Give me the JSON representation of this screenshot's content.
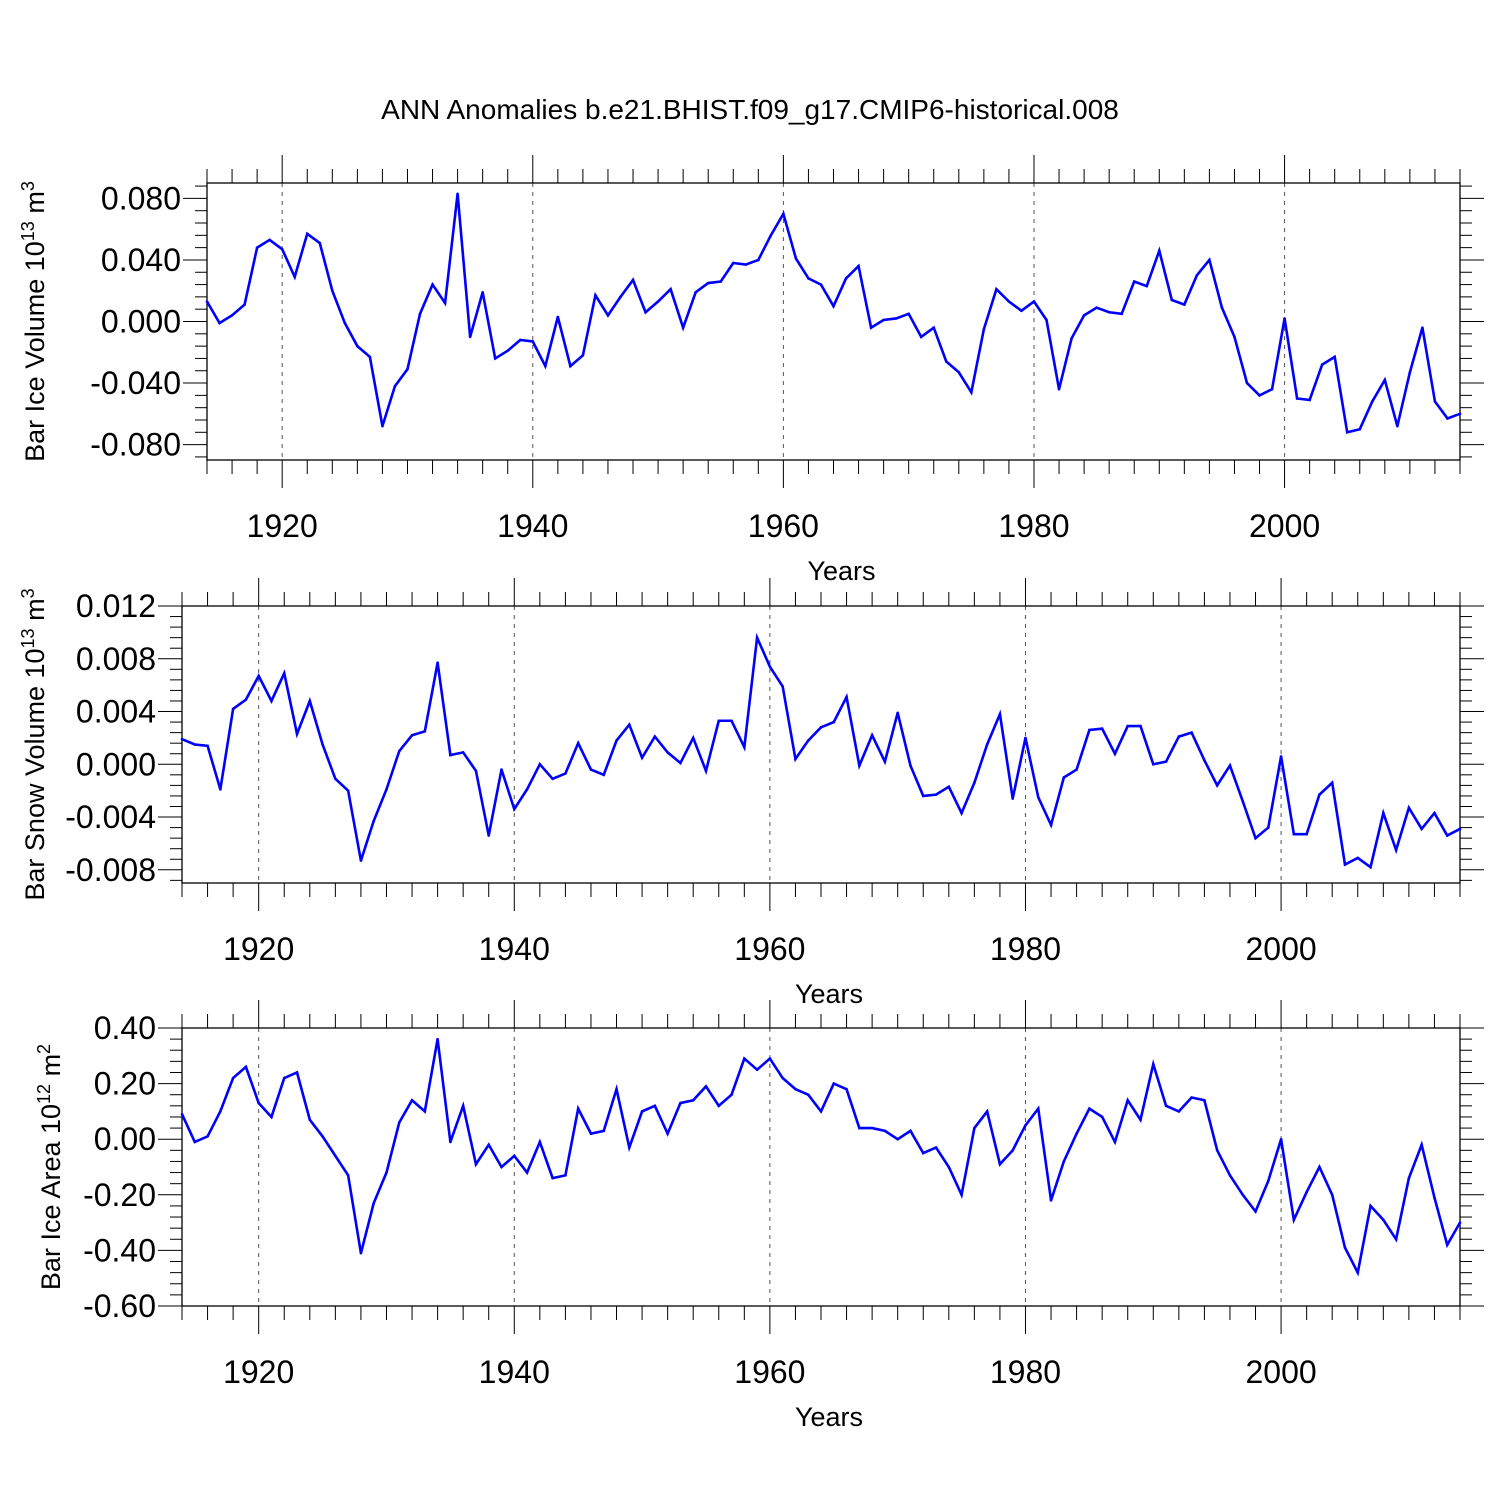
{
  "title": "ANN Anomalies b.e21.BHIST.f09_g17.CMIP6-historical.008",
  "colors": {
    "series": "#0000ff",
    "axis": "#000000",
    "grid": "#555555"
  },
  "chart_data": [
    {
      "type": "line",
      "ylabel": {
        "main": "Bar Ice Volume 10",
        "sup": "13",
        "unit": " m",
        "unit_sup": "3"
      },
      "xlabel": "Years",
      "xlim": [
        1914,
        2014
      ],
      "ylim": [
        -0.09,
        0.09
      ],
      "yticks": [
        0.08,
        0.04,
        0.0,
        -0.04,
        -0.08
      ],
      "ytick_labels": [
        "0.080",
        "0.040",
        "0.000",
        "-0.040",
        "-0.080"
      ],
      "xticks": [
        1920,
        1940,
        1960,
        1980,
        2000
      ],
      "xtick_labels": [
        "1920",
        "1940",
        "1960",
        "1980",
        "2000"
      ],
      "series": [
        {
          "name": "Bar Ice Volume",
          "x_start": 1914,
          "values": [
            0.013,
            -0.001,
            0.004,
            0.011,
            0.048,
            0.053,
            0.047,
            0.029,
            0.057,
            0.051,
            0.02,
            -0.001,
            -0.016,
            -0.023,
            -0.068,
            -0.042,
            -0.031,
            0.005,
            0.024,
            0.012,
            0.083,
            -0.01,
            0.019,
            -0.024,
            -0.019,
            -0.012,
            -0.013,
            -0.029,
            0.003,
            -0.029,
            -0.022,
            0.017,
            0.004,
            0.016,
            0.027,
            0.006,
            0.013,
            0.021,
            -0.004,
            0.019,
            0.025,
            0.026,
            0.038,
            0.037,
            0.04,
            0.056,
            0.07,
            0.041,
            0.028,
            0.024,
            0.01,
            0.028,
            0.036,
            -0.004,
            0.001,
            0.002,
            0.005,
            -0.01,
            -0.004,
            -0.026,
            -0.033,
            -0.046,
            -0.005,
            0.021,
            0.013,
            0.007,
            0.013,
            0.001,
            -0.044,
            -0.011,
            0.004,
            0.009,
            0.006,
            0.005,
            0.026,
            0.023,
            0.046,
            0.014,
            0.011,
            0.03,
            0.04,
            0.009,
            -0.01,
            -0.04,
            -0.048,
            -0.044,
            0.002,
            -0.05,
            -0.051,
            -0.028,
            -0.023,
            -0.072,
            -0.07,
            -0.052,
            -0.038,
            -0.068,
            -0.033,
            -0.004,
            -0.052,
            -0.063,
            -0.06
          ]
        }
      ]
    },
    {
      "type": "line",
      "ylabel": {
        "main": "Bar Snow Volume 10",
        "sup": "13",
        "unit": " m",
        "unit_sup": "3"
      },
      "xlabel": "Years",
      "xlim": [
        1914,
        2014
      ],
      "ylim": [
        -0.009,
        0.012
      ],
      "yticks": [
        0.012,
        0.008,
        0.004,
        0.0,
        -0.004,
        -0.008
      ],
      "ytick_labels": [
        "0.012",
        "0.008",
        "0.004",
        "0.000",
        "-0.004",
        "-0.008"
      ],
      "xticks": [
        1920,
        1940,
        1960,
        1980,
        2000
      ],
      "xtick_labels": [
        "1920",
        "1940",
        "1960",
        "1980",
        "2000"
      ],
      "series": [
        {
          "name": "Bar Snow Volume",
          "x_start": 1914,
          "values": [
            0.0019,
            0.0015,
            0.0014,
            -0.0019,
            0.0042,
            0.0049,
            0.0067,
            0.0048,
            0.0069,
            0.0023,
            0.0048,
            0.0015,
            -0.0011,
            -0.002,
            -0.0073,
            -0.0043,
            -0.0019,
            0.001,
            0.0022,
            0.0025,
            0.0077,
            0.0007,
            0.0009,
            -0.0005,
            -0.0054,
            -0.0004,
            -0.0034,
            -0.0019,
            0.0,
            -0.0011,
            -0.0007,
            0.0016,
            -0.0004,
            -0.0008,
            0.0018,
            0.003,
            0.0005,
            0.0021,
            0.0009,
            0.0001,
            0.002,
            -0.0005,
            0.0033,
            0.0033,
            0.0013,
            0.0096,
            0.0074,
            0.0059,
            0.0004,
            0.0018,
            0.0028,
            0.0032,
            0.0051,
            -0.0001,
            0.0022,
            0.0002,
            0.0039,
            -0.0001,
            -0.0024,
            -0.0023,
            -0.0017,
            -0.0037,
            -0.0014,
            0.0015,
            0.0038,
            -0.0026,
            0.002,
            -0.0025,
            -0.0046,
            -0.001,
            -0.0004,
            0.0026,
            0.0027,
            0.0008,
            0.0029,
            0.0029,
            0.0,
            0.0002,
            0.0021,
            0.0024,
            0.0003,
            -0.0016,
            -0.0001,
            -0.0028,
            -0.0056,
            -0.0048,
            0.0006,
            -0.0053,
            -0.0053,
            -0.0023,
            -0.0014,
            -0.0076,
            -0.0071,
            -0.0078,
            -0.0037,
            -0.0065,
            -0.0033,
            -0.0049,
            -0.0037,
            -0.0054,
            -0.0049
          ]
        }
      ]
    },
    {
      "type": "line",
      "ylabel": {
        "main": "Bar Ice Area 10",
        "sup": "12",
        "unit": " m",
        "unit_sup": "2"
      },
      "xlabel": "Years",
      "xlim": [
        1914,
        2014
      ],
      "ylim": [
        -0.6,
        0.4
      ],
      "yticks": [
        0.4,
        0.2,
        0.0,
        -0.2,
        -0.4,
        -0.6
      ],
      "ytick_labels": [
        "0.40",
        "0.20",
        "0.00",
        "-0.20",
        "-0.40",
        "-0.60"
      ],
      "xticks": [
        1920,
        1940,
        1960,
        1980,
        2000
      ],
      "xtick_labels": [
        "1920",
        "1940",
        "1960",
        "1980",
        "2000"
      ],
      "series": [
        {
          "name": "Bar Ice Area",
          "x_start": 1914,
          "values": [
            0.09,
            -0.01,
            0.01,
            0.1,
            0.22,
            0.26,
            0.13,
            0.08,
            0.22,
            0.24,
            0.07,
            0.01,
            -0.06,
            -0.13,
            -0.41,
            -0.23,
            -0.12,
            0.06,
            0.14,
            0.1,
            0.36,
            -0.01,
            0.12,
            -0.09,
            -0.02,
            -0.1,
            -0.06,
            -0.12,
            -0.01,
            -0.14,
            -0.13,
            0.11,
            0.02,
            0.03,
            0.18,
            -0.03,
            0.1,
            0.12,
            0.02,
            0.13,
            0.14,
            0.19,
            0.12,
            0.16,
            0.29,
            0.25,
            0.29,
            0.22,
            0.18,
            0.16,
            0.1,
            0.2,
            0.18,
            0.04,
            0.04,
            0.03,
            0.0,
            0.03,
            -0.05,
            -0.03,
            -0.1,
            -0.2,
            0.04,
            0.1,
            -0.09,
            -0.04,
            0.05,
            0.11,
            -0.22,
            -0.08,
            0.02,
            0.11,
            0.08,
            -0.01,
            0.14,
            0.07,
            0.27,
            0.12,
            0.1,
            0.15,
            0.14,
            -0.04,
            -0.13,
            -0.2,
            -0.26,
            -0.15,
            0.0,
            -0.29,
            -0.19,
            -0.1,
            -0.2,
            -0.39,
            -0.48,
            -0.24,
            -0.29,
            -0.36,
            -0.14,
            -0.02,
            -0.21,
            -0.38,
            -0.3
          ]
        }
      ]
    }
  ]
}
